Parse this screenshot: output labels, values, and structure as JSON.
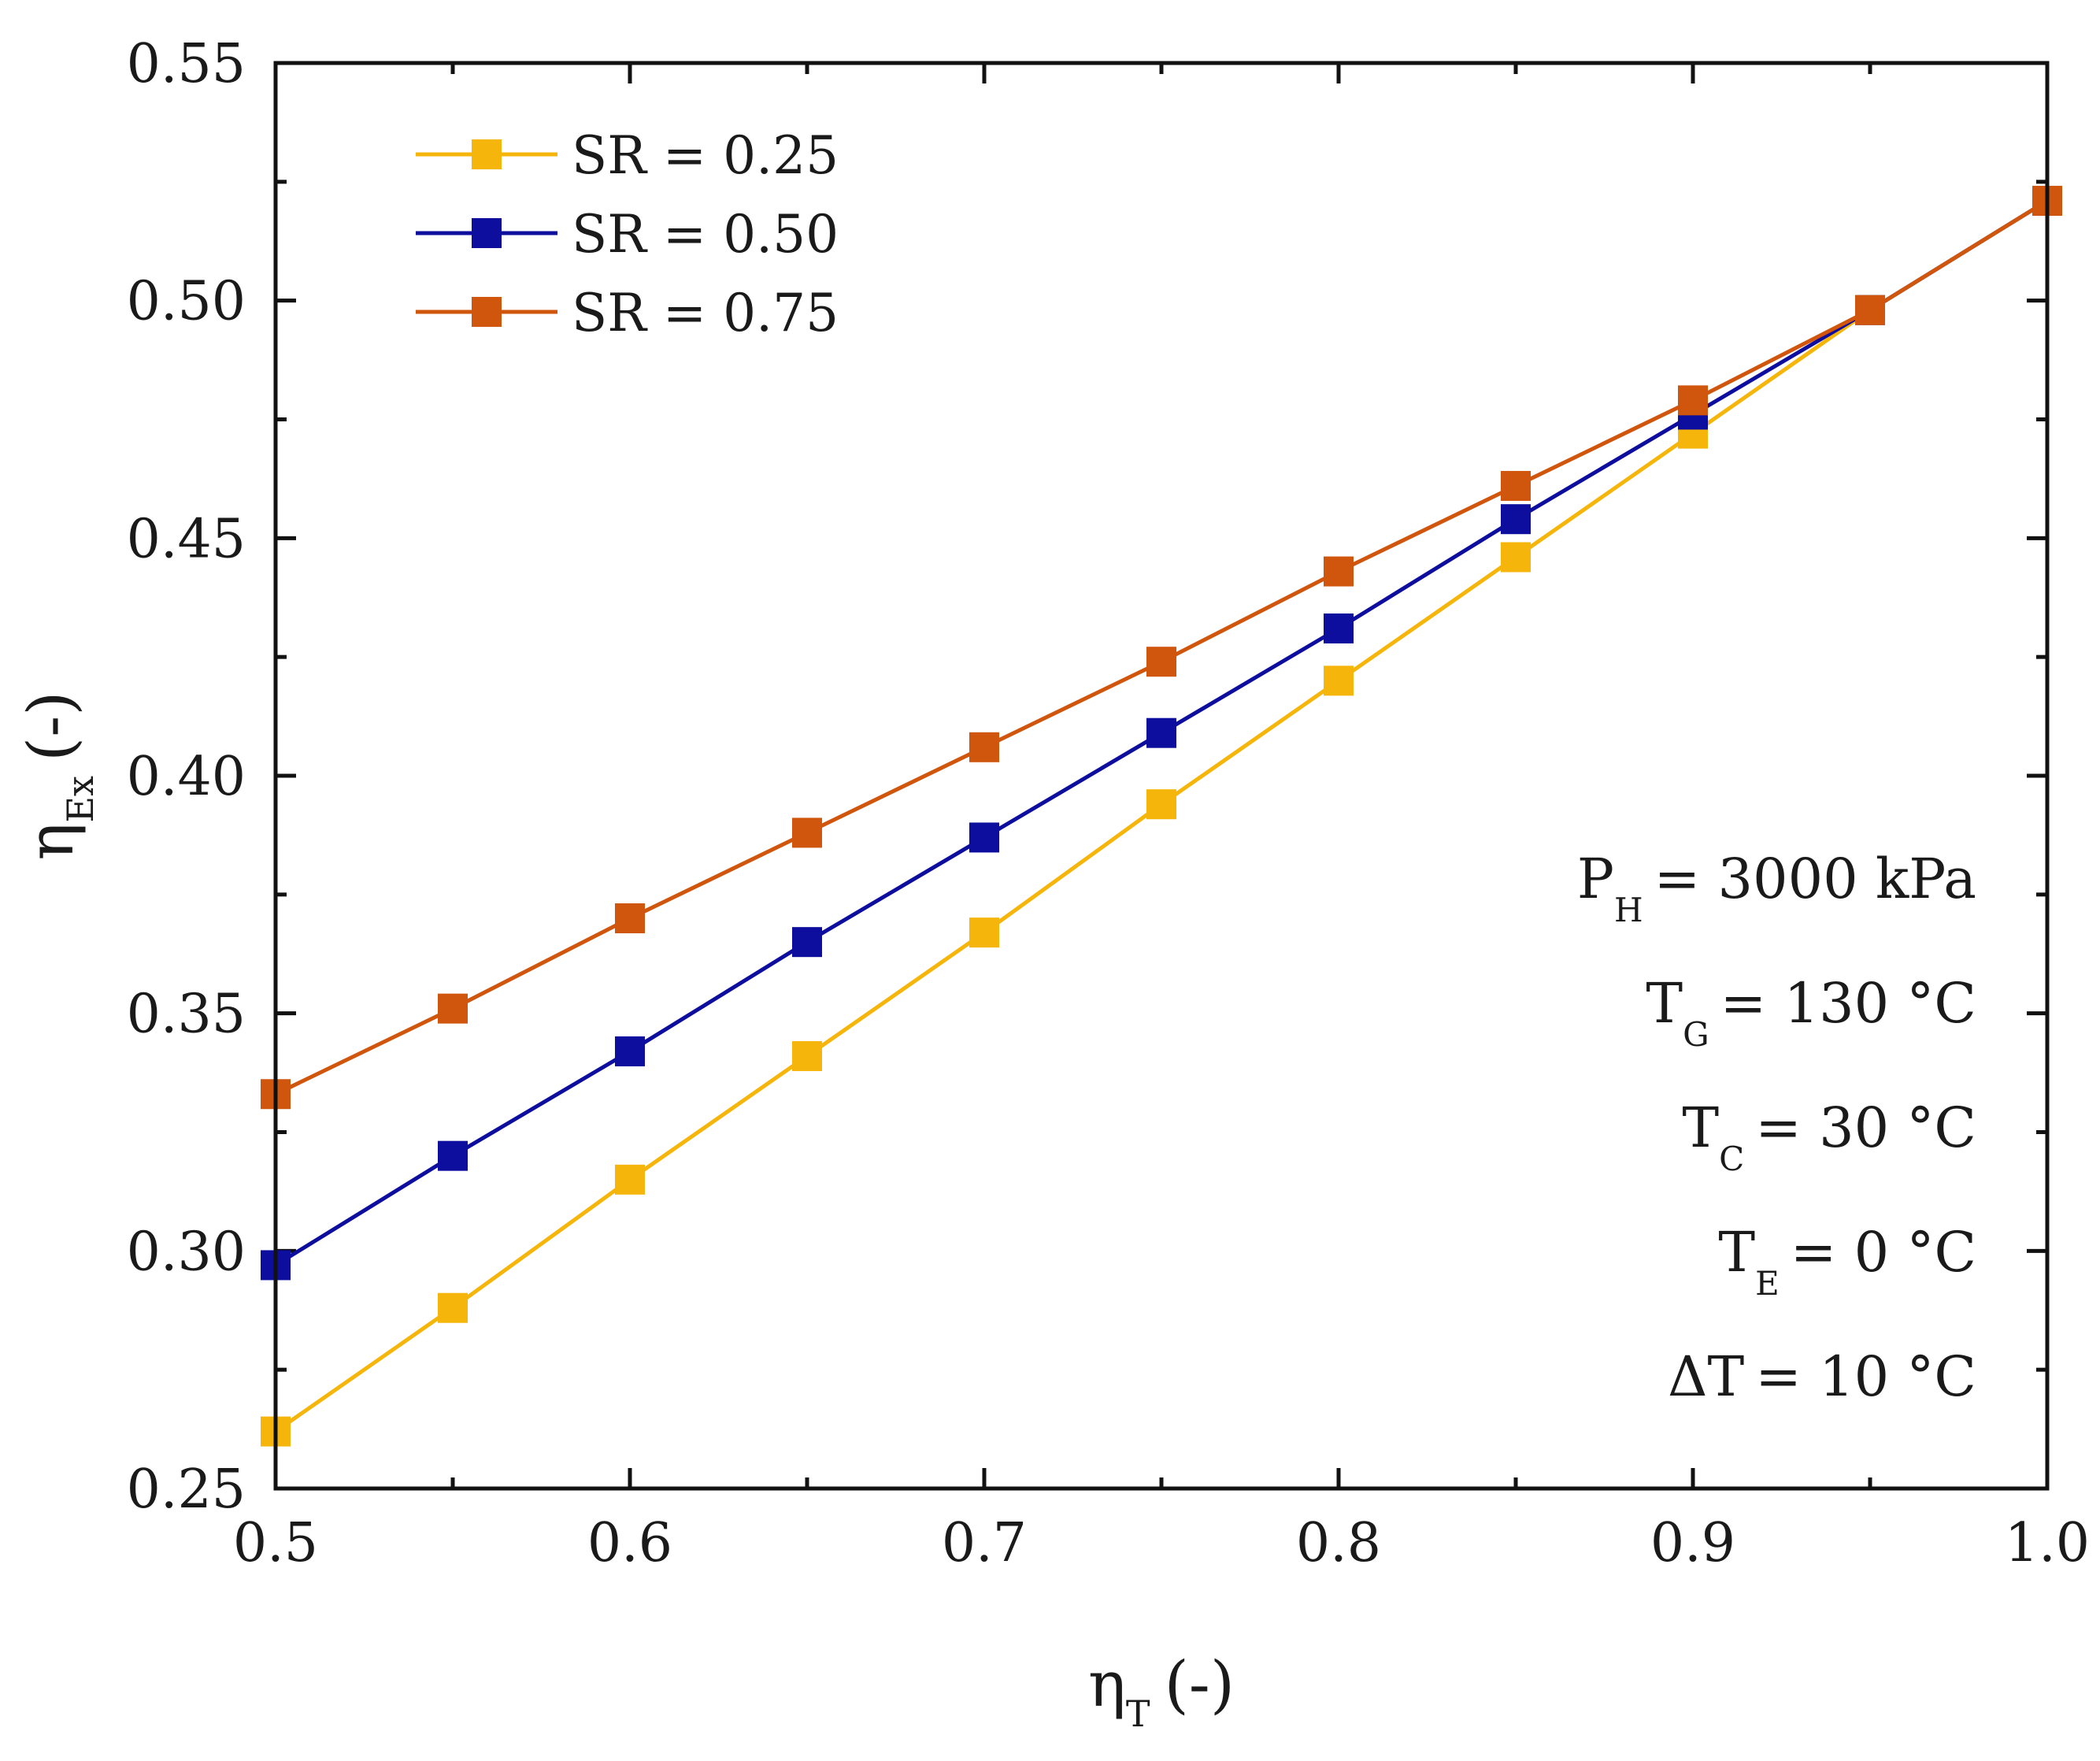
{
  "chart_data": {
    "type": "line",
    "title": "",
    "xlabel": {
      "main": "η",
      "sub": "T",
      "suffix": "(-)"
    },
    "ylabel": {
      "main": "η",
      "sub": "Ex",
      "suffix": "(-)"
    },
    "xlim": [
      0.5,
      1.0
    ],
    "ylim": [
      0.25,
      0.55
    ],
    "x_ticks": [
      "0.5",
      "0.6",
      "0.7",
      "0.8",
      "0.9",
      "1.0"
    ],
    "y_ticks": [
      "0.25",
      "0.30",
      "0.35",
      "0.40",
      "0.45",
      "0.50",
      "0.55"
    ],
    "grid": false,
    "legend_position": "top-left",
    "x": [
      0.5,
      0.55,
      0.6,
      0.65,
      0.7,
      0.75,
      0.8,
      0.85,
      0.9,
      0.95,
      1.0
    ],
    "series": [
      {
        "name": "SR = 0.25",
        "color": "#f5b50a",
        "values": [
          0.262,
          0.288,
          0.315,
          0.341,
          0.367,
          0.394,
          0.42,
          0.446,
          0.472,
          0.498,
          0.521
        ]
      },
      {
        "name": "SR = 0.50",
        "color": "#0d0d9e",
        "values": [
          0.297,
          0.32,
          0.342,
          0.365,
          0.387,
          0.409,
          0.431,
          0.454,
          0.476,
          0.498,
          0.521
        ]
      },
      {
        "name": "SR = 0.75",
        "color": "#d0560e",
        "values": [
          0.333,
          0.351,
          0.37,
          0.388,
          0.406,
          0.424,
          0.443,
          0.461,
          0.479,
          0.498,
          0.521
        ]
      }
    ],
    "annotations": [
      {
        "main": "P",
        "sub": "H",
        "rest": "= 3000 kPa"
      },
      {
        "main": "T",
        "sub": "G",
        "rest": "= 130 °C"
      },
      {
        "main": "T",
        "sub": "C",
        "rest": "= 30 °C"
      },
      {
        "main": "T",
        "sub": "E",
        "rest": "= 0 °C"
      },
      {
        "main": "ΔT",
        "sub": "",
        "rest": "= 10 °C"
      }
    ]
  }
}
